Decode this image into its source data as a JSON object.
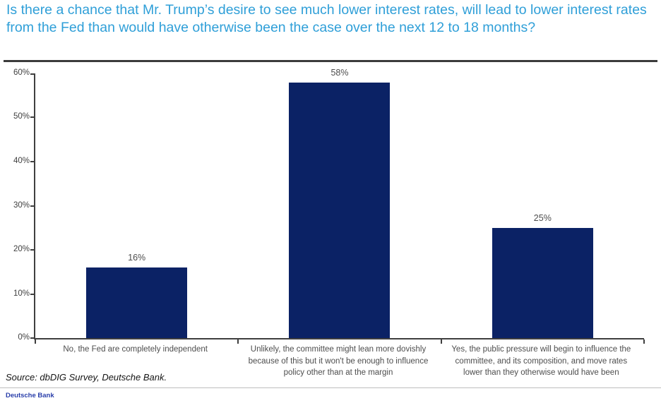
{
  "chart_data": {
    "type": "bar",
    "title": "Is there a chance that Mr. Trump’s desire to see much lower interest rates, will lead to lower interest rates from the Fed than would have otherwise been the case over the next 12 to 18 months?",
    "categories": [
      "No, the Fed are completely independent",
      "Unlikely, the committee might lean more dovishly because of this but it won't be enough to influence policy other than at the margin",
      "Yes, the public pressure will begin to influence the committee, and its composition, and move rates lower than they otherwise would have been"
    ],
    "values": [
      16,
      58,
      25
    ],
    "value_labels": [
      "16%",
      "58%",
      "25%"
    ],
    "xlabel": "",
    "ylabel": "",
    "ylim": [
      0,
      60
    ],
    "tick_values": [
      60,
      50,
      40,
      30,
      20,
      10,
      0
    ],
    "tick_labels": [
      "60%",
      "50%",
      "40%",
      "30%",
      "20%",
      "10%",
      "0%"
    ],
    "grid": false,
    "legend": false,
    "bar_color": "#0b2265"
  },
  "source": "Source: dbDIG Survey, Deutsche Bank.",
  "brand": "Deutsche Bank",
  "colors": {
    "title": "#2f9fd8",
    "bar": "#0b2265",
    "axis": "#3f3f3f",
    "label_text": "#4d4d4d",
    "brand": "#2a3faa"
  }
}
